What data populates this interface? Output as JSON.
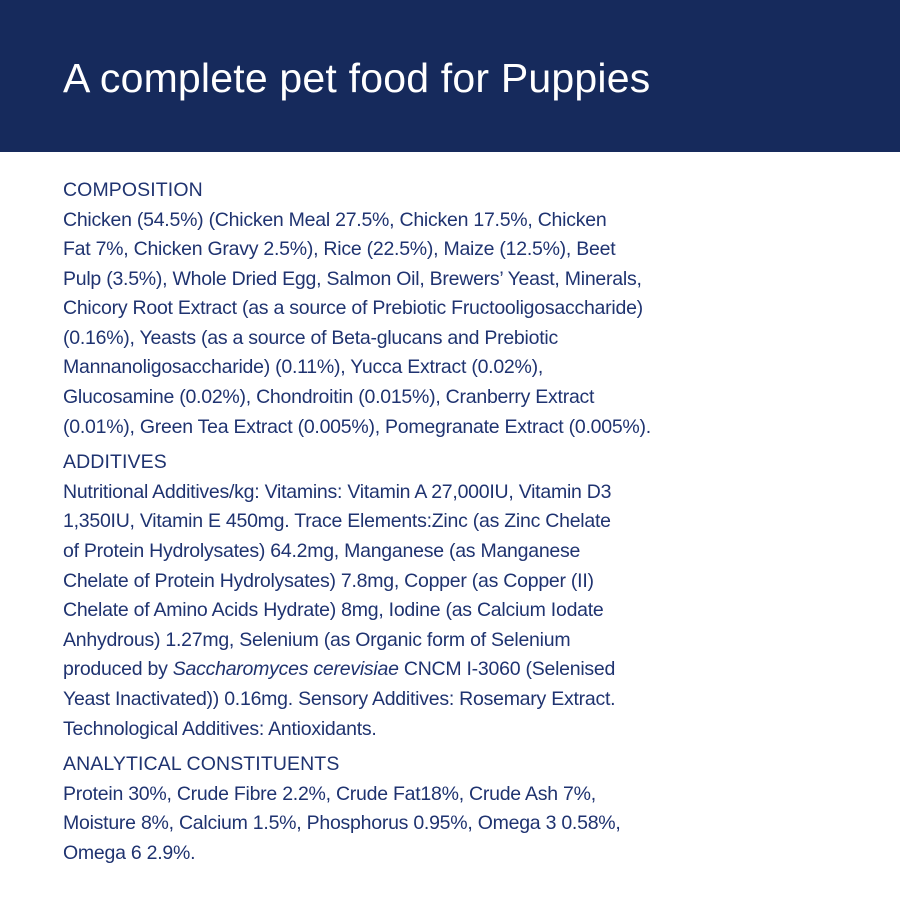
{
  "header": {
    "title": "A complete pet food for Puppies"
  },
  "composition": {
    "heading": "COMPOSITION",
    "lines": [
      "Chicken (54.5%) (Chicken Meal 27.5%, Chicken 17.5%, Chicken",
      "Fat 7%, Chicken Gravy 2.5%), Rice (22.5%), Maize (12.5%), Beet",
      "Pulp (3.5%), Whole Dried Egg, Salmon Oil, Brewers’ Yeast, Minerals,",
      "Chicory Root Extract (as a source of Prebiotic Fructooligosaccharide)",
      "(0.16%), Yeasts (as a source of Beta-glucans and Prebiotic",
      "Mannanoligosaccharide) (0.11%), Yucca Extract (0.02%),",
      "Glucosamine (0.02%), Chondroitin (0.015%), Cranberry Extract",
      "(0.01%), Green Tea Extract (0.005%), Pomegranate Extract (0.005%)."
    ]
  },
  "additives": {
    "heading": "ADDITIVES",
    "lines": [
      "Nutritional Additives/kg: Vitamins: Vitamin A 27,000IU, Vitamin D3",
      "1,350IU, Vitamin E 450mg. Trace Elements:Zinc (as Zinc Chelate",
      "of Protein Hydrolysates) 64.2mg, Manganese (as Manganese",
      "Chelate of Protein Hydrolysates) 7.8mg, Copper (as Copper (II)",
      "Chelate of Amino Acids Hydrate) 8mg, Iodine (as Calcium Iodate",
      "Anhydrous) 1.27mg, Selenium (as Organic form of Selenium"
    ],
    "line7_before": "produced by ",
    "line7_italic": "Saccharomyces cerevisiae",
    "line7_after": " CNCM I-3060 (Selenised",
    "lines_end": [
      "Yeast Inactivated)) 0.16mg. Sensory Additives: Rosemary Extract.",
      "Technological Additives: Antioxidants."
    ]
  },
  "analytical": {
    "heading": "ANALYTICAL CONSTITUENTS",
    "lines": [
      "Protein 30%, Crude Fibre 2.2%, Crude Fat18%, Crude Ash 7%,",
      "Moisture 8%, Calcium 1.5%, Phosphorus 0.95%, Omega 3 0.58%,",
      "Omega 6 2.9%."
    ]
  },
  "colors": {
    "header_background": "#162a5c",
    "text": "#1f3370"
  }
}
